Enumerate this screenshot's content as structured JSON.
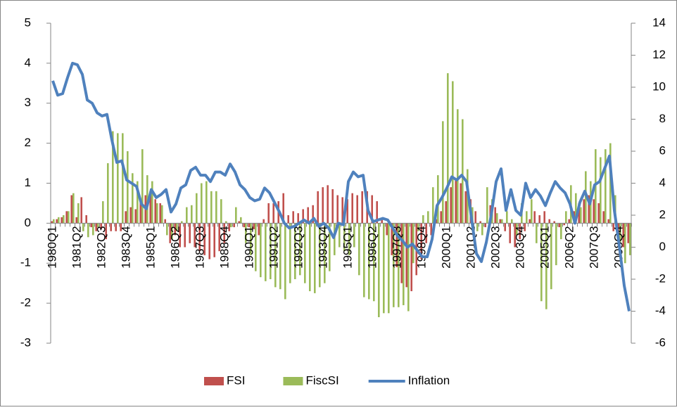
{
  "chart_data": {
    "type": "bar-line",
    "categories": [
      "1980Q1",
      null,
      null,
      null,
      null,
      "1981Q2",
      null,
      null,
      null,
      null,
      "1982Q3",
      null,
      null,
      null,
      null,
      "1983Q4",
      null,
      null,
      null,
      null,
      "1985Q1",
      null,
      null,
      null,
      null,
      "1986Q2",
      null,
      null,
      null,
      null,
      "1987Q3",
      null,
      null,
      null,
      null,
      "1988Q4",
      null,
      null,
      null,
      null,
      "1990Q1",
      null,
      null,
      null,
      null,
      "1991Q2",
      null,
      null,
      null,
      null,
      "1992Q3",
      null,
      null,
      null,
      null,
      "1993Q4",
      null,
      null,
      null,
      null,
      "1995Q1",
      null,
      null,
      null,
      null,
      "1996Q2",
      null,
      null,
      null,
      null,
      "1997Q3",
      null,
      null,
      null,
      null,
      "1998Q4",
      null,
      null,
      null,
      null,
      "2000Q1",
      null,
      null,
      null,
      null,
      "2001Q2",
      null,
      null,
      null,
      null,
      "2002Q3",
      null,
      null,
      null,
      null,
      "2003Q4",
      null,
      null,
      null,
      null,
      "2005Q1",
      null,
      null,
      null,
      null,
      "2006Q2",
      null,
      null,
      null,
      null,
      "2007Q3",
      null,
      null,
      null,
      null,
      "2008Q4",
      null,
      null
    ],
    "series": [
      {
        "name": "FSI",
        "color": "#c0504d",
        "kind": "bar",
        "axis": "y",
        "values": [
          0.05,
          0.1,
          0.15,
          0.3,
          0.7,
          0.15,
          0.65,
          0.2,
          -0.1,
          -0.2,
          -0.15,
          -0.4,
          -0.2,
          -0.2,
          -0.2,
          0.3,
          0.4,
          0.35,
          0.6,
          0.7,
          0.8,
          0.6,
          0.5,
          0.1,
          -0.5,
          -0.3,
          -0.6,
          -0.6,
          -0.5,
          -0.6,
          -0.7,
          -0.8,
          -0.9,
          -0.85,
          -0.7,
          -0.5,
          -0.2,
          -0.1,
          0.05,
          -0.1,
          -0.1,
          -0.15,
          -0.3,
          0.1,
          0.5,
          0.5,
          0.55,
          0.75,
          0.2,
          0.3,
          0.25,
          0.35,
          0.4,
          0.45,
          0.8,
          0.9,
          0.95,
          0.85,
          0.7,
          0.65,
          0.6,
          0.75,
          0.7,
          0.8,
          0.8,
          0.7,
          0.55,
          0.1,
          -0.3,
          -0.8,
          -1.1,
          -1.5,
          -1.6,
          -1.7,
          -1.3,
          -0.9,
          -0.5,
          -0.3,
          0.1,
          0.3,
          0.55,
          0.9,
          1.1,
          1.0,
          0.8,
          0.6,
          0.3,
          0.05,
          -0.1,
          0.45,
          0.4,
          0.1,
          -0.2,
          -0.5,
          -0.6,
          -0.4,
          -0.2,
          0.1,
          0.3,
          0.2,
          0.3,
          0.1,
          0.05,
          -0.1,
          -0.05,
          0.1,
          0.3,
          0.5,
          0.6,
          0.7,
          0.6,
          0.5,
          0.3,
          0.1,
          -0.2,
          -0.4,
          -0.6,
          -0.5
        ]
      },
      {
        "name": "FiscSI",
        "color": "#9bbb59",
        "kind": "bar",
        "axis": "y",
        "values": [
          0.1,
          0.15,
          0.2,
          0.3,
          0.75,
          0.5,
          -0.2,
          -0.35,
          -0.3,
          -0.1,
          0.55,
          1.5,
          2.3,
          2.25,
          2.25,
          1.8,
          1.25,
          1.05,
          1.85,
          1.2,
          1.05,
          0.5,
          0.45,
          -0.3,
          -0.4,
          -0.2,
          0.05,
          0.4,
          0.45,
          0.75,
          1.0,
          1.05,
          0.8,
          0.8,
          0.6,
          0.05,
          -0.1,
          0.4,
          0.15,
          -0.5,
          -0.8,
          -1.2,
          -1.35,
          -1.45,
          -1.4,
          -1.6,
          -1.65,
          -1.9,
          -1.5,
          -1.4,
          -1.3,
          -1.5,
          -1.7,
          -1.75,
          -1.6,
          -1.5,
          -1.2,
          -0.8,
          -0.6,
          -0.7,
          -0.8,
          -0.6,
          -1.3,
          -1.85,
          -1.9,
          -1.95,
          -2.35,
          -2.25,
          -2.25,
          -2.1,
          -2.1,
          -2.05,
          -2.2,
          -1.0,
          -0.2,
          0.2,
          0.3,
          0.9,
          1.2,
          2.55,
          3.75,
          3.55,
          2.85,
          2.6,
          1.35,
          0.4,
          -0.2,
          -0.3,
          0.9,
          0.6,
          0.25,
          0.1,
          0.3,
          0.1,
          -0.3,
          0.5,
          0.3,
          0.6,
          -0.5,
          -1.95,
          -2.15,
          -1.65,
          -1.05,
          -0.4,
          0.3,
          0.95,
          0.75,
          0.4,
          1.3,
          1.05,
          1.85,
          1.65,
          1.85,
          2.0,
          0.7,
          -0.5,
          -1.0,
          -0.8
        ]
      },
      {
        "name": "Inflation",
        "color": "#4f81bd",
        "kind": "line",
        "axis": "y2",
        "values": [
          10.4,
          9.5,
          9.6,
          10.6,
          11.5,
          11.4,
          10.8,
          9.2,
          9.0,
          8.4,
          8.2,
          8.3,
          6.7,
          5.3,
          5.4,
          4.2,
          4.0,
          3.8,
          2.7,
          2.4,
          3.6,
          3.1,
          3.3,
          3.6,
          2.2,
          2.7,
          3.7,
          3.9,
          4.8,
          5.0,
          4.5,
          4.5,
          4.1,
          4.7,
          4.7,
          4.5,
          5.2,
          4.7,
          3.9,
          3.6,
          3.1,
          2.9,
          3.0,
          3.7,
          3.4,
          2.8,
          2.2,
          1.5,
          1.2,
          1.3,
          1.5,
          1.7,
          1.5,
          1.8,
          1.3,
          1.5,
          1.2,
          0.6,
          1.5,
          1.4,
          4.1,
          4.7,
          4.4,
          4.5,
          2.3,
          1.6,
          1.7,
          1.8,
          1.7,
          1.2,
          0.7,
          0.4,
          0.0,
          0.2,
          -0.2,
          -0.6,
          -0.6,
          0.5,
          2.6,
          3.1,
          3.7,
          4.4,
          4.2,
          4.5,
          4.1,
          1.8,
          -0.4,
          -0.9,
          0.3,
          2.0,
          4.1,
          4.9,
          2.3,
          3.6,
          2.3,
          2.0,
          4.0,
          3.1,
          3.6,
          3.2,
          2.6,
          3.4,
          4.1,
          3.7,
          3.4,
          2.7,
          1.5,
          2.8,
          3.5,
          2.7,
          3.9,
          4.1,
          4.9,
          5.7,
          2.3,
          0.1,
          -2.4,
          -4.0
        ]
      }
    ],
    "ylim": [
      -3,
      5
    ],
    "yticks": [
      -3,
      -2,
      -1,
      0,
      1,
      2,
      3,
      4,
      5
    ],
    "y2lim": [
      -6,
      14
    ],
    "y2ticks": [
      -6,
      -4,
      -2,
      0,
      2,
      4,
      6,
      8,
      10,
      12,
      14
    ],
    "grid": false,
    "legend": "bottom"
  }
}
